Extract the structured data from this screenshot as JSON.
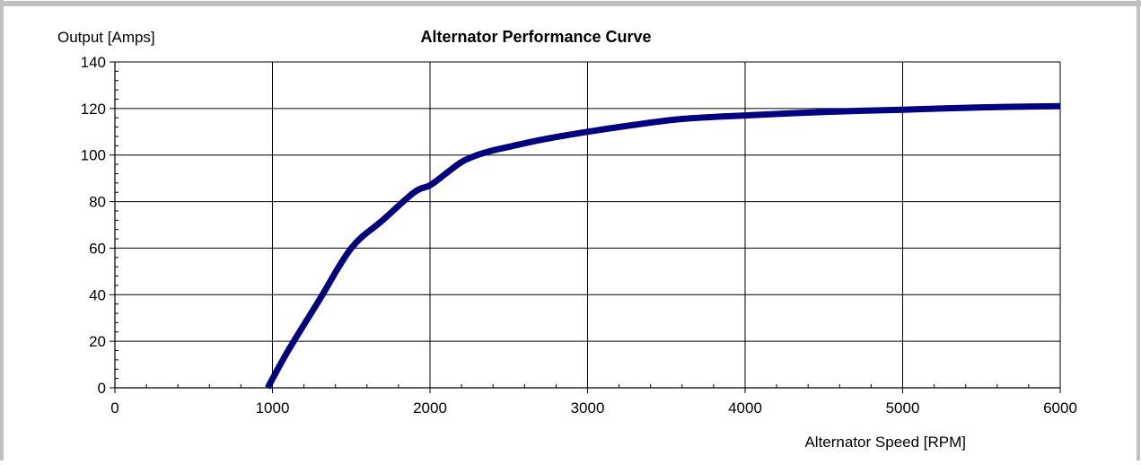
{
  "chart_data": {
    "type": "line",
    "title": "Alternator Performance Curve",
    "ylabel": "Output [Amps]",
    "xlabel": "Alternator Speed [RPM]",
    "xlim": [
      0,
      6000
    ],
    "ylim": [
      0,
      140
    ],
    "x_ticks": [
      0,
      1000,
      2000,
      3000,
      4000,
      5000,
      6000
    ],
    "y_ticks": [
      0,
      20,
      40,
      60,
      80,
      100,
      120,
      140
    ],
    "x_tick_labels": [
      "0",
      "1000",
      "2000",
      "3000",
      "4000",
      "5000",
      "6000"
    ],
    "y_tick_labels": [
      "0",
      "20",
      "40",
      "60",
      "80",
      "100",
      "120",
      "140"
    ],
    "grid": true,
    "series": [
      {
        "color": "#000080",
        "x": [
          970,
          1100,
          1300,
          1500,
          1700,
          1900,
          2000,
          2100,
          2200,
          2300,
          2400,
          2500,
          2700,
          3000,
          3300,
          3600,
          4000,
          4500,
          5000,
          5500,
          6000
        ],
        "y": [
          0,
          16,
          38,
          60,
          72,
          84,
          87,
          92,
          97,
          100,
          102,
          103.5,
          106.5,
          110,
          113,
          115.5,
          117,
          118.5,
          119.5,
          120.5,
          121
        ]
      }
    ]
  }
}
